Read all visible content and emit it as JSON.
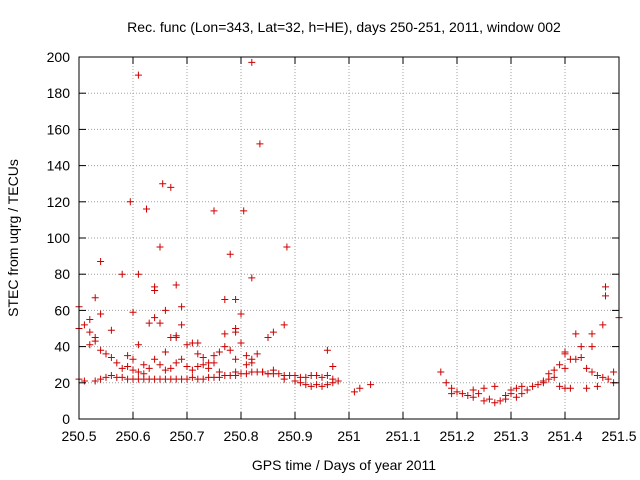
{
  "chart_data": {
    "type": "scatter",
    "title": "Rec. func (Lon=343, Lat=32, h=HE), days 250-251, 2011, window 002",
    "xlabel": "GPS time / Days of year 2011",
    "ylabel": "STEC from uqrg / TECUs",
    "xlim": [
      250.5,
      251.5
    ],
    "ylim": [
      0,
      200
    ],
    "x_ticks": [
      "250.5",
      "250.6",
      "250.7",
      "250.8",
      "250.9",
      "251",
      "251.1",
      "251.2",
      "251.3",
      "251.4",
      "251.5"
    ],
    "y_ticks": [
      "0",
      "20",
      "40",
      "60",
      "80",
      "100",
      "120",
      "140",
      "160",
      "180",
      "200"
    ],
    "grid": true,
    "marker": "+",
    "marker_color": "#cc0000",
    "series": [
      {
        "name": "STEC",
        "points": [
          [
            250.5,
            22
          ],
          [
            250.51,
            21
          ],
          [
            250.53,
            21
          ],
          [
            250.54,
            22
          ],
          [
            250.55,
            23
          ],
          [
            250.56,
            24
          ],
          [
            250.57,
            23
          ],
          [
            250.58,
            23
          ],
          [
            250.59,
            22
          ],
          [
            250.6,
            22
          ],
          [
            250.61,
            22
          ],
          [
            250.62,
            22
          ],
          [
            250.63,
            22
          ],
          [
            250.64,
            22
          ],
          [
            250.65,
            22
          ],
          [
            250.66,
            22
          ],
          [
            250.67,
            22
          ],
          [
            250.68,
            22
          ],
          [
            250.69,
            22
          ],
          [
            250.7,
            22
          ],
          [
            250.71,
            23
          ],
          [
            250.72,
            22
          ],
          [
            250.73,
            22
          ],
          [
            250.74,
            23
          ],
          [
            250.75,
            23
          ],
          [
            250.76,
            23
          ],
          [
            250.77,
            24
          ],
          [
            250.78,
            24
          ],
          [
            250.79,
            24
          ],
          [
            250.8,
            25
          ],
          [
            250.81,
            25
          ],
          [
            250.82,
            26
          ],
          [
            250.83,
            26
          ],
          [
            250.84,
            26
          ],
          [
            250.85,
            25
          ],
          [
            250.86,
            25
          ],
          [
            250.87,
            25
          ],
          [
            250.88,
            24
          ],
          [
            250.89,
            24
          ],
          [
            250.9,
            24
          ],
          [
            250.91,
            23
          ],
          [
            250.92,
            23
          ],
          [
            250.93,
            24
          ],
          [
            250.94,
            24
          ],
          [
            250.95,
            23
          ],
          [
            250.96,
            24
          ],
          [
            250.97,
            22
          ],
          [
            250.5,
            50
          ],
          [
            250.51,
            52
          ],
          [
            250.52,
            41
          ],
          [
            250.52,
            55
          ],
          [
            250.53,
            43
          ],
          [
            250.53,
            45
          ],
          [
            250.54,
            38
          ],
          [
            250.54,
            58
          ],
          [
            250.55,
            36
          ],
          [
            250.56,
            34
          ],
          [
            250.56,
            49
          ],
          [
            250.57,
            31
          ],
          [
            250.58,
            28
          ],
          [
            250.59,
            35
          ],
          [
            250.59,
            29
          ],
          [
            250.6,
            33
          ],
          [
            250.6,
            27
          ],
          [
            250.61,
            41
          ],
          [
            250.61,
            26
          ],
          [
            250.62,
            30
          ],
          [
            250.62,
            25
          ],
          [
            250.63,
            53
          ],
          [
            250.63,
            28
          ],
          [
            250.64,
            56
          ],
          [
            250.64,
            33
          ],
          [
            250.65,
            53
          ],
          [
            250.65,
            30
          ],
          [
            250.66,
            37
          ],
          [
            250.66,
            27
          ],
          [
            250.67,
            45
          ],
          [
            250.67,
            28
          ],
          [
            250.68,
            46
          ],
          [
            250.68,
            31
          ],
          [
            250.69,
            52
          ],
          [
            250.69,
            33
          ],
          [
            250.7,
            41
          ],
          [
            250.7,
            29
          ],
          [
            250.71,
            42
          ],
          [
            250.71,
            27
          ],
          [
            250.72,
            36
          ],
          [
            250.72,
            29
          ],
          [
            250.73,
            34
          ],
          [
            250.73,
            30
          ],
          [
            250.74,
            31
          ],
          [
            250.74,
            28
          ],
          [
            250.75,
            35
          ],
          [
            250.75,
            31
          ],
          [
            250.76,
            37
          ],
          [
            250.76,
            26
          ],
          [
            250.77,
            40
          ],
          [
            250.78,
            38
          ],
          [
            250.79,
            33
          ],
          [
            250.79,
            26
          ],
          [
            250.8,
            42
          ],
          [
            250.81,
            35
          ],
          [
            250.81,
            30
          ],
          [
            250.82,
            33
          ],
          [
            250.82,
            31
          ],
          [
            250.83,
            36
          ],
          [
            250.84,
            26
          ],
          [
            250.85,
            25
          ],
          [
            250.86,
            27
          ],
          [
            250.88,
            22
          ],
          [
            250.9,
            21
          ],
          [
            250.91,
            20
          ],
          [
            250.92,
            19
          ],
          [
            250.93,
            18
          ],
          [
            250.94,
            19
          ],
          [
            250.95,
            18
          ],
          [
            250.96,
            19
          ],
          [
            250.97,
            20
          ],
          [
            250.98,
            21
          ],
          [
            250.97,
            29
          ],
          [
            250.96,
            38
          ],
          [
            250.5,
            62
          ],
          [
            250.52,
            48
          ],
          [
            250.53,
            67
          ],
          [
            250.54,
            87
          ],
          [
            250.58,
            80
          ],
          [
            250.595,
            120
          ],
          [
            250.6,
            59
          ],
          [
            250.61,
            80
          ],
          [
            250.61,
            190
          ],
          [
            250.625,
            116
          ],
          [
            250.64,
            73
          ],
          [
            250.64,
            71
          ],
          [
            250.65,
            95
          ],
          [
            250.655,
            130
          ],
          [
            250.67,
            128
          ],
          [
            250.68,
            74
          ],
          [
            250.69,
            62
          ],
          [
            250.75,
            115
          ],
          [
            250.77,
            66
          ],
          [
            250.78,
            91
          ],
          [
            250.79,
            50
          ],
          [
            250.79,
            66
          ],
          [
            250.8,
            58
          ],
          [
            250.805,
            115
          ],
          [
            250.82,
            197
          ],
          [
            250.82,
            78
          ],
          [
            250.835,
            152
          ],
          [
            250.86,
            48
          ],
          [
            250.88,
            52
          ],
          [
            250.885,
            95
          ],
          [
            250.85,
            45
          ],
          [
            250.66,
            60
          ],
          [
            250.68,
            45
          ],
          [
            250.72,
            42
          ],
          [
            250.77,
            47
          ],
          [
            250.79,
            48
          ],
          [
            251.01,
            15
          ],
          [
            251.02,
            17
          ],
          [
            251.04,
            19
          ],
          [
            251.17,
            26
          ],
          [
            251.18,
            20
          ],
          [
            251.19,
            17
          ],
          [
            251.19,
            14
          ],
          [
            251.2,
            15
          ],
          [
            251.21,
            14
          ],
          [
            251.22,
            13
          ],
          [
            251.23,
            12
          ],
          [
            251.23,
            16
          ],
          [
            251.24,
            14
          ],
          [
            251.25,
            10
          ],
          [
            251.25,
            17
          ],
          [
            251.26,
            11
          ],
          [
            251.27,
            9
          ],
          [
            251.27,
            18
          ],
          [
            251.28,
            10
          ],
          [
            251.29,
            11
          ],
          [
            251.29,
            13
          ],
          [
            251.3,
            14
          ],
          [
            251.3,
            16
          ],
          [
            251.31,
            12
          ],
          [
            251.31,
            17
          ],
          [
            251.32,
            14
          ],
          [
            251.32,
            18
          ],
          [
            251.33,
            16
          ],
          [
            251.34,
            18
          ],
          [
            251.35,
            19
          ],
          [
            251.36,
            21
          ],
          [
            251.36,
            20
          ],
          [
            251.37,
            22
          ],
          [
            251.37,
            25
          ],
          [
            251.38,
            23
          ],
          [
            251.38,
            27
          ],
          [
            251.39,
            30
          ],
          [
            251.39,
            18
          ],
          [
            251.4,
            36
          ],
          [
            251.4,
            28
          ],
          [
            251.4,
            17
          ],
          [
            251.41,
            33
          ],
          [
            251.41,
            17
          ],
          [
            251.42,
            47
          ],
          [
            251.42,
            33
          ],
          [
            251.43,
            34
          ],
          [
            251.43,
            40
          ],
          [
            251.44,
            17
          ],
          [
            251.44,
            28
          ],
          [
            251.45,
            40
          ],
          [
            251.45,
            26
          ],
          [
            251.45,
            47
          ],
          [
            251.46,
            18
          ],
          [
            251.46,
            24
          ],
          [
            251.47,
            23
          ],
          [
            251.47,
            52
          ],
          [
            251.475,
            68
          ],
          [
            251.475,
            73
          ],
          [
            251.48,
            22
          ],
          [
            251.49,
            26
          ],
          [
            251.49,
            20
          ],
          [
            251.5,
            56
          ],
          [
            251.4,
            37
          ]
        ]
      }
    ]
  }
}
